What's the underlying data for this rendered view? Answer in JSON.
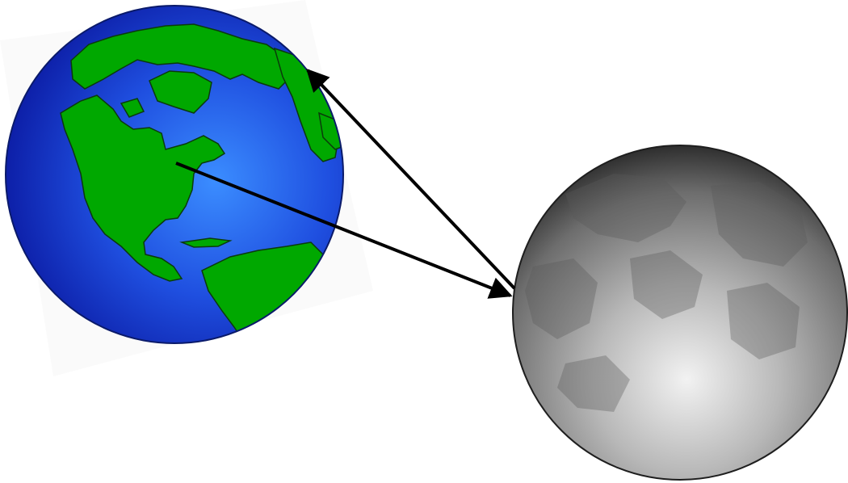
{
  "bodies": [
    {
      "name": "earth",
      "ocean_color": "#1f3fd6",
      "ocean_highlight": "#3a8cff",
      "land_color": "#00a800"
    },
    {
      "name": "moon",
      "surface_color": "#9a9a9a",
      "highlight_color": "#eeeeee",
      "shadow_color": "#2e2e2e"
    }
  ],
  "arrows": [
    {
      "from": "earth-surface",
      "to": "moon",
      "color": "#000000"
    },
    {
      "from": "moon",
      "to": "earth-limb",
      "color": "#000000"
    }
  ]
}
